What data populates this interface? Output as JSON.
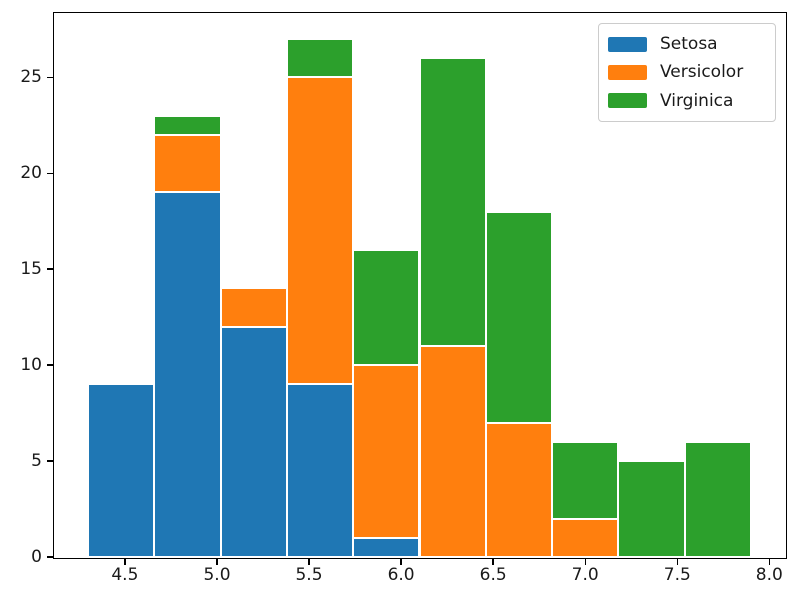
{
  "chart_data": {
    "type": "bar",
    "subtype": "stacked-histogram",
    "title": "",
    "xlabel": "",
    "ylabel": "",
    "bin_edges": [
      4.3,
      4.66,
      5.02,
      5.38,
      5.74,
      6.1,
      6.46,
      6.82,
      7.18,
      7.54,
      7.9
    ],
    "series": [
      {
        "name": "Setosa",
        "color": "#1f77b4",
        "values": [
          9,
          19,
          12,
          9,
          1,
          0,
          0,
          0,
          0,
          0
        ]
      },
      {
        "name": "Versicolor",
        "color": "#ff7f0e",
        "values": [
          0,
          3,
          2,
          16,
          9,
          11,
          7,
          2,
          0,
          0
        ]
      },
      {
        "name": "Virginica",
        "color": "#2ca02c",
        "values": [
          0,
          1,
          0,
          2,
          6,
          15,
          11,
          4,
          5,
          6
        ]
      }
    ],
    "stacked_totals": [
      9,
      23,
      14,
      27,
      16,
      26,
      18,
      6,
      5,
      6
    ],
    "x_ticks": [
      {
        "value": 4.5,
        "label": "4.5"
      },
      {
        "value": 5.0,
        "label": "5.0"
      },
      {
        "value": 5.5,
        "label": "5.5"
      },
      {
        "value": 6.0,
        "label": "6.0"
      },
      {
        "value": 6.5,
        "label": "6.5"
      },
      {
        "value": 7.0,
        "label": "7.0"
      },
      {
        "value": 7.5,
        "label": "7.5"
      },
      {
        "value": 8.0,
        "label": "8.0"
      }
    ],
    "y_ticks": [
      {
        "value": 0,
        "label": "0"
      },
      {
        "value": 5,
        "label": "5"
      },
      {
        "value": 10,
        "label": "10"
      },
      {
        "value": 15,
        "label": "15"
      },
      {
        "value": 20,
        "label": "20"
      },
      {
        "value": 25,
        "label": "25"
      }
    ],
    "xlim": [
      4.115,
      8.085
    ],
    "ylim": [
      0,
      28.35
    ],
    "grid": false,
    "bar_edge_color": "#ffffff",
    "legend": {
      "position": "upper right",
      "entries": [
        {
          "label": "Setosa",
          "color": "#1f77b4"
        },
        {
          "label": "Versicolor",
          "color": "#ff7f0e"
        },
        {
          "label": "Virginica",
          "color": "#2ca02c"
        }
      ]
    }
  }
}
